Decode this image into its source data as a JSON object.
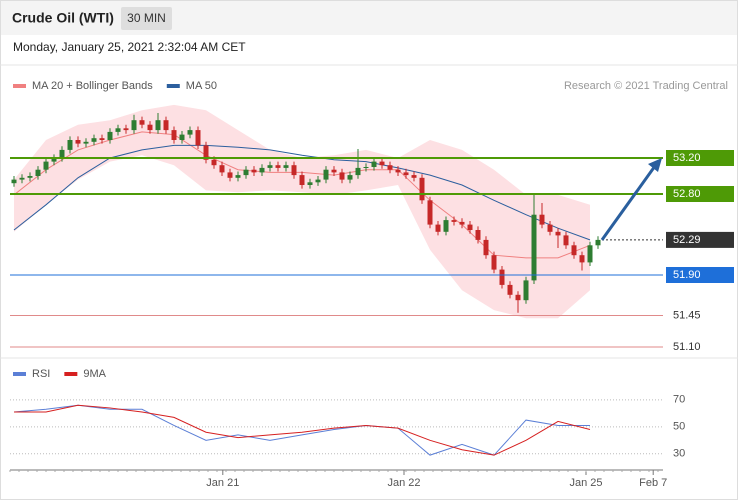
{
  "chart_data": [
    {
      "type": "candlestick",
      "title": "Crude Oil (WTI)",
      "timeframe": "30 MIN",
      "subtitle": "Monday, January 25, 2021 2:32:04 AM CET",
      "source": "Research © 2021 Trading Central",
      "xlim": [
        -0.5,
        81.125
      ],
      "ylim": [
        51,
        53.85
      ],
      "up_color": "#2e7d32",
      "down_color": "#c62828",
      "band_color": "#fde0e3",
      "ohlc": [
        [
          52.92,
          53.0,
          52.88,
          52.96
        ],
        [
          52.96,
          53.02,
          52.92,
          52.98
        ],
        [
          52.98,
          53.04,
          52.94,
          53.0
        ],
        [
          53.0,
          53.11,
          52.96,
          53.07
        ],
        [
          53.07,
          53.2,
          53.03,
          53.16
        ],
        [
          53.16,
          53.24,
          53.12,
          53.2
        ],
        [
          53.2,
          53.33,
          53.16,
          53.29
        ],
        [
          53.29,
          53.44,
          53.25,
          53.4
        ],
        [
          53.4,
          53.44,
          53.32,
          53.36
        ],
        [
          53.36,
          53.42,
          53.32,
          53.38
        ],
        [
          53.38,
          53.46,
          53.34,
          53.42
        ],
        [
          53.42,
          53.46,
          53.36,
          53.4
        ],
        [
          53.4,
          53.53,
          53.36,
          53.49
        ],
        [
          53.49,
          53.57,
          53.45,
          53.53
        ],
        [
          53.53,
          53.57,
          53.47,
          53.51
        ],
        [
          53.51,
          53.68,
          53.47,
          53.62
        ],
        [
          53.62,
          53.66,
          53.53,
          53.57
        ],
        [
          53.57,
          53.61,
          53.47,
          53.51
        ],
        [
          53.51,
          53.7,
          53.47,
          53.62
        ],
        [
          53.62,
          53.66,
          53.47,
          53.51
        ],
        [
          53.51,
          53.55,
          53.36,
          53.4
        ],
        [
          53.4,
          53.5,
          53.36,
          53.46
        ],
        [
          53.46,
          53.55,
          53.42,
          53.51
        ],
        [
          53.51,
          53.55,
          53.3,
          53.34
        ],
        [
          53.34,
          53.38,
          53.14,
          53.18
        ],
        [
          53.18,
          53.22,
          53.08,
          53.12
        ],
        [
          53.12,
          53.16,
          53.0,
          53.04
        ],
        [
          53.04,
          53.08,
          52.94,
          52.98
        ],
        [
          52.98,
          53.05,
          52.94,
          53.01
        ],
        [
          53.01,
          53.11,
          52.97,
          53.07
        ],
        [
          53.07,
          53.11,
          53.0,
          53.04
        ],
        [
          53.04,
          53.13,
          53.0,
          53.09
        ],
        [
          53.09,
          53.16,
          53.05,
          53.12
        ],
        [
          53.12,
          53.16,
          53.05,
          53.09
        ],
        [
          53.09,
          53.16,
          53.05,
          53.12
        ],
        [
          53.12,
          53.16,
          52.97,
          53.01
        ],
        [
          53.01,
          53.05,
          52.86,
          52.9
        ],
        [
          52.9,
          52.97,
          52.86,
          52.93
        ],
        [
          52.93,
          53.0,
          52.89,
          52.96
        ],
        [
          52.96,
          53.11,
          52.92,
          53.07
        ],
        [
          53.07,
          53.11,
          53.0,
          53.04
        ],
        [
          53.04,
          53.08,
          52.92,
          52.96
        ],
        [
          52.96,
          53.05,
          52.92,
          53.01
        ],
        [
          53.01,
          53.3,
          52.97,
          53.09
        ],
        [
          53.09,
          53.14,
          53.05,
          53.1
        ],
        [
          53.1,
          53.2,
          53.06,
          53.16
        ],
        [
          53.16,
          53.2,
          53.08,
          53.12
        ],
        [
          53.12,
          53.16,
          53.03,
          53.07
        ],
        [
          53.07,
          53.11,
          53.0,
          53.04
        ],
        [
          53.04,
          53.08,
          52.97,
          53.01
        ],
        [
          53.01,
          53.05,
          52.94,
          52.98
        ],
        [
          52.98,
          53.02,
          52.69,
          52.73
        ],
        [
          52.73,
          52.77,
          52.42,
          52.46
        ],
        [
          52.46,
          52.5,
          52.34,
          52.38
        ],
        [
          52.38,
          52.55,
          52.34,
          52.51
        ],
        [
          52.51,
          52.55,
          52.45,
          52.49
        ],
        [
          52.49,
          52.53,
          52.42,
          52.46
        ],
        [
          52.46,
          52.5,
          52.36,
          52.4
        ],
        [
          52.4,
          52.44,
          52.25,
          52.29
        ],
        [
          52.29,
          52.33,
          52.08,
          52.12
        ],
        [
          52.12,
          52.16,
          51.92,
          51.96
        ],
        [
          51.96,
          52.0,
          51.75,
          51.79
        ],
        [
          51.79,
          51.83,
          51.64,
          51.68
        ],
        [
          51.68,
          51.72,
          51.48,
          51.62
        ],
        [
          51.62,
          51.88,
          51.58,
          51.84
        ],
        [
          51.84,
          52.8,
          51.8,
          52.57
        ],
        [
          52.57,
          52.7,
          52.42,
          52.46
        ],
        [
          52.46,
          52.5,
          52.34,
          52.38
        ],
        [
          52.38,
          52.42,
          52.2,
          52.34
        ],
        [
          52.34,
          52.38,
          52.19,
          52.23
        ],
        [
          52.23,
          52.27,
          52.08,
          52.12
        ],
        [
          52.12,
          52.16,
          51.95,
          52.04
        ],
        [
          52.04,
          52.27,
          52.0,
          52.23
        ],
        [
          52.23,
          52.33,
          52.19,
          52.29
        ]
      ],
      "series": [
        {
          "name": "MA 20 + Bollinger Bands",
          "color": "#f08080",
          "x": [
            0,
            4,
            8,
            12,
            16,
            20,
            24,
            28,
            32,
            36,
            40,
            44,
            48,
            52,
            56,
            60,
            64,
            68,
            72
          ],
          "values": [
            52.79,
            53.07,
            53.29,
            53.4,
            53.49,
            53.46,
            53.23,
            53.07,
            53.04,
            53.04,
            53.01,
            53.07,
            53.07,
            52.73,
            52.46,
            52.12,
            52.09,
            52.09,
            52.23
          ],
          "upper": [
            52.96,
            53.4,
            53.57,
            53.62,
            53.73,
            53.79,
            53.73,
            53.51,
            53.29,
            53.2,
            53.23,
            53.29,
            53.2,
            53.4,
            53.29,
            53.07,
            52.79,
            52.79,
            52.68
          ],
          "lower": [
            52.38,
            52.68,
            52.96,
            53.16,
            53.23,
            53.12,
            52.84,
            52.82,
            52.84,
            52.82,
            52.79,
            52.84,
            52.9,
            52.18,
            51.73,
            51.51,
            51.42,
            51.42,
            51.73
          ]
        },
        {
          "name": "MA 50",
          "color": "#2c5f9e",
          "x": [
            0,
            4,
            8,
            12,
            16,
            20,
            24,
            28,
            32,
            36,
            40,
            44,
            48,
            52,
            56,
            60,
            64,
            68,
            72
          ],
          "values": [
            52.4,
            52.68,
            52.98,
            53.2,
            53.29,
            53.34,
            53.34,
            53.32,
            53.29,
            53.23,
            53.18,
            53.16,
            53.09,
            53.01,
            52.9,
            52.73,
            52.57,
            52.42,
            52.29
          ]
        }
      ],
      "levels": [
        {
          "value": 53.2,
          "label": "53.20",
          "color": "#4e9a06",
          "boxed": true,
          "dashed": false
        },
        {
          "value": 52.8,
          "label": "52.80",
          "color": "#4e9a06",
          "boxed": true,
          "dashed": false
        },
        {
          "value": 52.29,
          "color": "#333333",
          "boxed": true,
          "dashed": true
        },
        {
          "value": 51.9,
          "label": "51.90",
          "color": "#1e6fd9",
          "boxed": true,
          "dashed": false
        },
        {
          "value": 51.45,
          "color": "#e08a8a",
          "boxed": false,
          "dashed": false
        },
        {
          "value": 51.1,
          "label": "51.10",
          "color": "#e08a8a",
          "boxed": false,
          "dashed": false
        }
      ]
    },
    {
      "type": "line",
      "xlim": [
        -0.5,
        81.125
      ],
      "ylim": [
        18,
        81
      ],
      "yticks": [
        30,
        50,
        70
      ],
      "grid": true,
      "xticks": [
        {
          "value": 26.1,
          "label": "Jan 21"
        },
        {
          "value": 48.75,
          "label": "Jan 22"
        },
        {
          "value": 71.5,
          "label": "Jan 25"
        },
        {
          "value": 79.9,
          "label": "Feb 7"
        }
      ],
      "series": [
        {
          "name": "RSI",
          "color": "#5b7fd6",
          "x": [
            0,
            4,
            8,
            12,
            16,
            20,
            24,
            28,
            32,
            36,
            40,
            44,
            48,
            52,
            56,
            60,
            64,
            68,
            72
          ],
          "values": [
            61,
            63,
            66,
            63,
            63,
            51,
            40,
            44,
            40,
            44,
            48,
            51,
            49,
            29,
            37,
            29,
            55,
            51,
            51
          ]
        },
        {
          "name": "9MA",
          "color": "#d62020",
          "x": [
            0,
            4,
            8,
            12,
            16,
            20,
            24,
            28,
            32,
            36,
            40,
            44,
            48,
            52,
            56,
            60,
            64,
            68,
            72
          ],
          "values": [
            61,
            61,
            66,
            64,
            61,
            57,
            46,
            42,
            44,
            46,
            49,
            51,
            49,
            40,
            33,
            29,
            40,
            54,
            48
          ]
        }
      ]
    }
  ]
}
